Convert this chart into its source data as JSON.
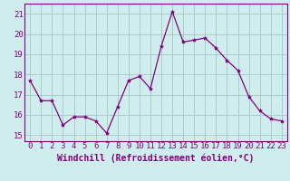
{
  "x": [
    0,
    1,
    2,
    3,
    4,
    5,
    6,
    7,
    8,
    9,
    10,
    11,
    12,
    13,
    14,
    15,
    16,
    17,
    18,
    19,
    20,
    21,
    22,
    23
  ],
  "y": [
    17.7,
    16.7,
    16.7,
    15.5,
    15.9,
    15.9,
    15.7,
    15.1,
    16.4,
    17.7,
    17.9,
    17.3,
    19.4,
    21.1,
    19.6,
    19.7,
    19.8,
    19.3,
    18.7,
    18.2,
    16.9,
    16.2,
    15.8,
    15.7
  ],
  "line_color": "#800080",
  "marker": "*",
  "marker_size": 3,
  "bg_color": "#d0eded",
  "grid_color": "#a8cccc",
  "xlabel": "Windchill (Refroidissement éolien,°C)",
  "xlabel_fontsize": 7,
  "tick_fontsize": 6.5,
  "ylim": [
    14.7,
    21.5
  ],
  "yticks": [
    15,
    16,
    17,
    18,
    19,
    20,
    21
  ],
  "xticks": [
    0,
    1,
    2,
    3,
    4,
    5,
    6,
    7,
    8,
    9,
    10,
    11,
    12,
    13,
    14,
    15,
    16,
    17,
    18,
    19,
    20,
    21,
    22,
    23
  ]
}
